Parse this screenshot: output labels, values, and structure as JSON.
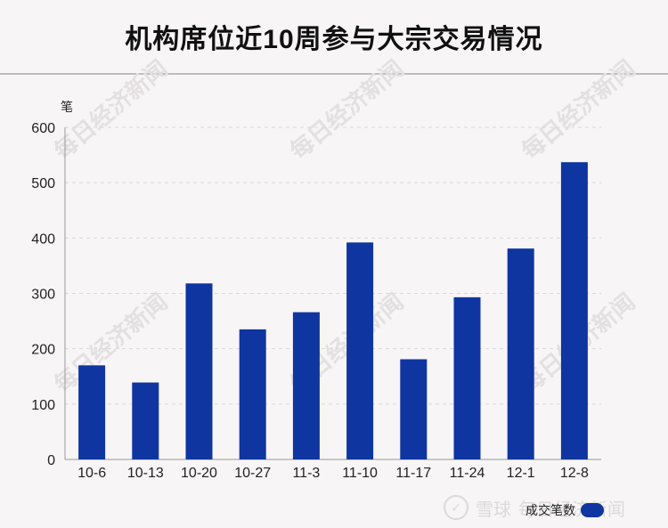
{
  "title": "机构席位近10周参与大宗交易情况",
  "watermark_text": "每日经济新闻",
  "footer": {
    "brand": "雪球",
    "source": "每日经济新闻"
  },
  "colors": {
    "bar": "#0f35a0",
    "axis": "#333333",
    "grid": "#d9d9d9"
  },
  "chart_data": {
    "type": "bar",
    "title": "机构席位近10周参与大宗交易情况",
    "ylabel": "笔",
    "xlabel": "",
    "ylim": [
      0,
      600
    ],
    "yticks": [
      0,
      100,
      200,
      300,
      400,
      500,
      600
    ],
    "categories": [
      "10-6",
      "10-13",
      "10-20",
      "10-27",
      "11-3",
      "11-10",
      "11-17",
      "11-24",
      "12-1",
      "12-8"
    ],
    "series": [
      {
        "name": "成交笔数",
        "values": [
          170,
          139,
          318,
          235,
          266,
          392,
          181,
          293,
          381,
          537
        ]
      }
    ],
    "grid": true,
    "legend_position": "bottom-right"
  }
}
